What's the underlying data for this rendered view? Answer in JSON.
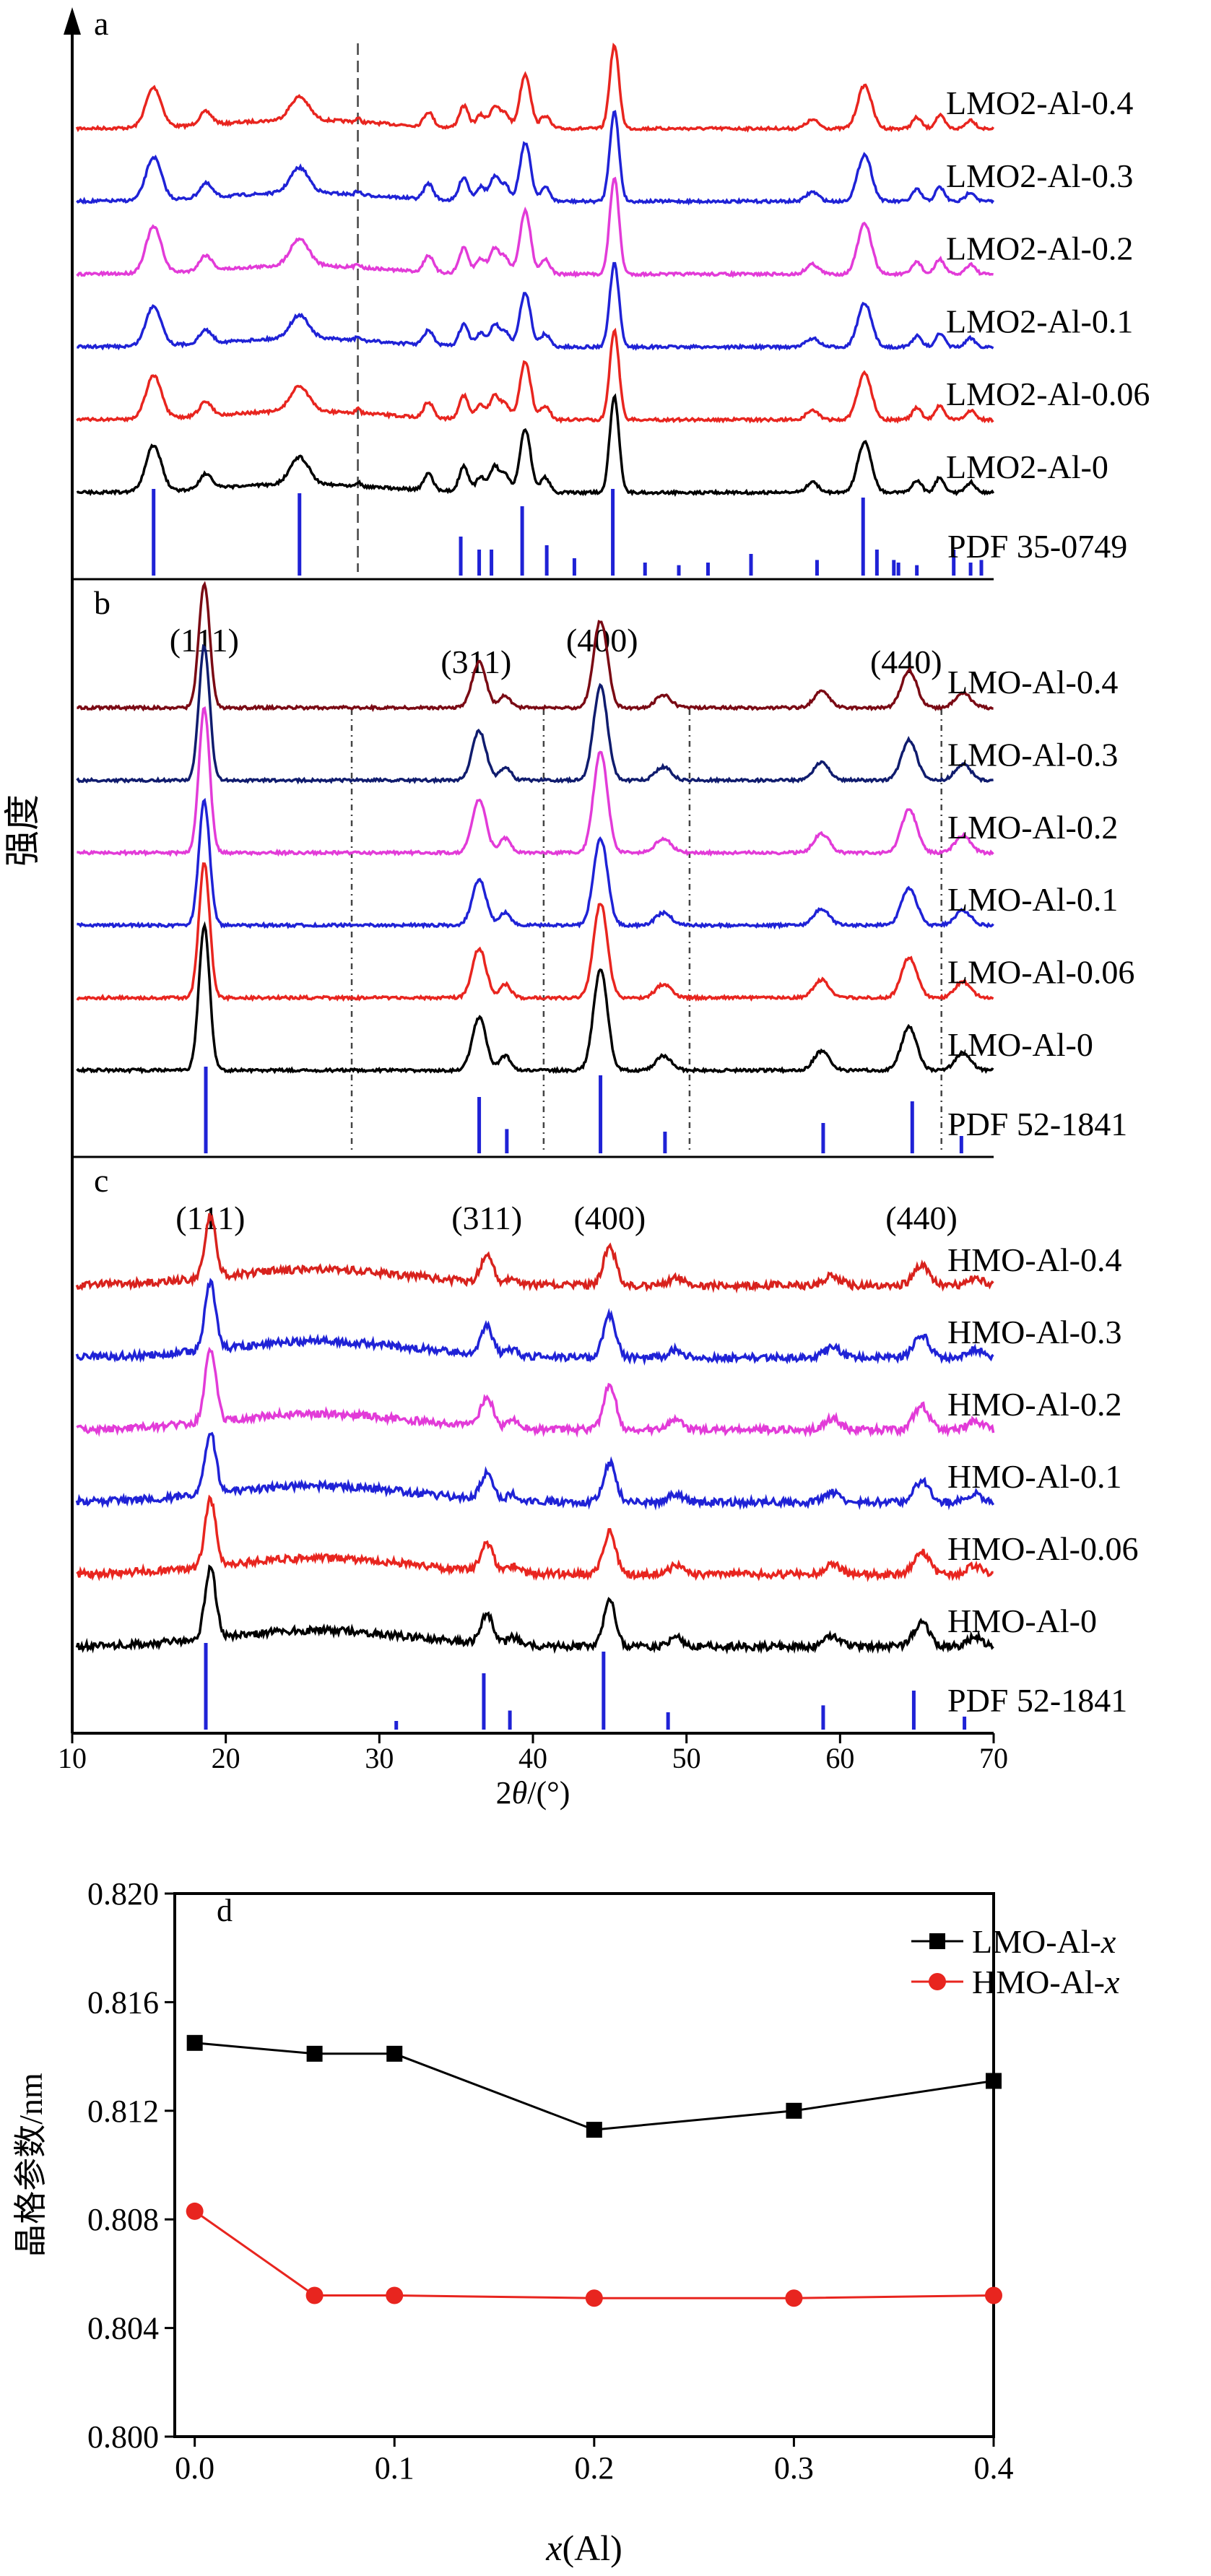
{
  "xrd": {
    "xlabel": "2θ/(°)",
    "ylabel": "强度",
    "xlim": [
      10,
      70
    ],
    "xticks": [
      10,
      20,
      30,
      40,
      50,
      60,
      70
    ],
    "panels": [
      {
        "id": "a",
        "ref_label": "PDF 35-0749",
        "dashed_at": [
          28.6
        ],
        "hkl": [],
        "series": [
          {
            "label": "LMO2-Al-0.4",
            "color": "#e8251f"
          },
          {
            "label": "LMO2-Al-0.3",
            "color": "#1f22d6"
          },
          {
            "label": "LMO2-Al-0.2",
            "color": "#e23bd8"
          },
          {
            "label": "LMO2-Al-0.1",
            "color": "#1f22d6"
          },
          {
            "label": "LMO2-Al-0.06",
            "color": "#e8251f"
          },
          {
            "label": "LMO2-Al-0",
            "color": "#000000"
          }
        ],
        "peaks": [
          [
            15.3,
            0.5,
            0.55
          ],
          [
            18.7,
            0.4,
            0.18
          ],
          [
            24.8,
            0.6,
            0.32
          ],
          [
            28.6,
            0.15,
            0.05
          ],
          [
            33.2,
            0.3,
            0.2
          ],
          [
            35.5,
            0.3,
            0.3
          ],
          [
            36.6,
            0.3,
            0.18
          ],
          [
            37.5,
            0.3,
            0.3
          ],
          [
            38.2,
            0.3,
            0.2
          ],
          [
            39.5,
            0.35,
            0.75
          ],
          [
            40.8,
            0.3,
            0.18
          ],
          [
            45.3,
            0.3,
            1.15
          ],
          [
            58.2,
            0.4,
            0.12
          ],
          [
            61.6,
            0.45,
            0.6
          ],
          [
            65.0,
            0.3,
            0.15
          ],
          [
            66.5,
            0.3,
            0.18
          ],
          [
            68.5,
            0.3,
            0.12
          ]
        ],
        "ref_lines": [
          [
            15.3,
            1.0
          ],
          [
            24.8,
            0.95
          ],
          [
            35.3,
            0.45
          ],
          [
            36.5,
            0.3
          ],
          [
            37.3,
            0.3
          ],
          [
            39.3,
            0.8
          ],
          [
            40.9,
            0.35
          ],
          [
            42.7,
            0.2
          ],
          [
            45.2,
            1.0
          ],
          [
            47.3,
            0.15
          ],
          [
            49.5,
            0.12
          ],
          [
            51.4,
            0.15
          ],
          [
            54.2,
            0.25
          ],
          [
            58.5,
            0.18
          ],
          [
            61.5,
            0.9
          ],
          [
            62.4,
            0.3
          ],
          [
            63.5,
            0.18
          ],
          [
            63.8,
            0.15
          ],
          [
            65.0,
            0.12
          ],
          [
            67.4,
            0.3
          ],
          [
            68.5,
            0.15
          ],
          [
            69.2,
            0.18
          ]
        ]
      },
      {
        "id": "b",
        "ref_label": "PDF 52-1841",
        "dashed_at": [
          28.2,
          40.7,
          50.2,
          66.6
        ],
        "hkl": [
          {
            "label": "(111)",
            "x": 18.6,
            "row": 0
          },
          {
            "label": "(311)",
            "x": 36.3,
            "row": 1
          },
          {
            "label": "(400)",
            "x": 44.5,
            "row": 0
          },
          {
            "label": "(440)",
            "x": 64.3,
            "row": 1
          }
        ],
        "series": [
          {
            "label": "LMO-Al-0.4",
            "color": "#7a0a14"
          },
          {
            "label": "LMO-Al-0.3",
            "color": "#101c6e"
          },
          {
            "label": "LMO-Al-0.2",
            "color": "#e23bd8"
          },
          {
            "label": "LMO-Al-0.1",
            "color": "#1f22d6"
          },
          {
            "label": "LMO-Al-0.06",
            "color": "#e8251f"
          },
          {
            "label": "LMO-Al-0",
            "color": "#000000"
          }
        ],
        "peaks": [
          [
            18.6,
            0.35,
            1.5
          ],
          [
            36.5,
            0.45,
            0.55
          ],
          [
            38.2,
            0.35,
            0.15
          ],
          [
            44.4,
            0.45,
            1.05
          ],
          [
            48.5,
            0.5,
            0.15
          ],
          [
            58.8,
            0.5,
            0.2
          ],
          [
            64.5,
            0.5,
            0.45
          ],
          [
            68.0,
            0.5,
            0.18
          ]
        ],
        "ref_lines": [
          [
            18.7,
            1.0
          ],
          [
            36.5,
            0.65
          ],
          [
            38.3,
            0.28
          ],
          [
            44.4,
            0.9
          ],
          [
            48.6,
            0.25
          ],
          [
            58.9,
            0.35
          ],
          [
            64.7,
            0.6
          ],
          [
            67.9,
            0.2
          ]
        ]
      },
      {
        "id": "c",
        "ref_label": "PDF 52-1841",
        "dashed_at": [],
        "hkl": [
          {
            "label": "(111)",
            "x": 19.0,
            "row": 0
          },
          {
            "label": "(311)",
            "x": 37.0,
            "row": 0
          },
          {
            "label": "(400)",
            "x": 45.0,
            "row": 0
          },
          {
            "label": "(440)",
            "x": 65.3,
            "row": 0
          }
        ],
        "series": [
          {
            "label": "HMO-Al-0.4",
            "color": "#d8221d"
          },
          {
            "label": "HMO-Al-0.3",
            "color": "#1f22d6"
          },
          {
            "label": "HMO-Al-0.2",
            "color": "#e23bd8"
          },
          {
            "label": "HMO-Al-0.1",
            "color": "#1f22d6"
          },
          {
            "label": "HMO-Al-0.06",
            "color": "#e8251f"
          },
          {
            "label": "HMO-Al-0",
            "color": "#000000"
          }
        ],
        "peaks": [
          [
            19.0,
            0.35,
            0.95
          ],
          [
            37.0,
            0.4,
            0.4
          ],
          [
            38.7,
            0.35,
            0.1
          ],
          [
            45.0,
            0.4,
            0.6
          ],
          [
            49.3,
            0.45,
            0.12
          ],
          [
            59.5,
            0.5,
            0.15
          ],
          [
            65.3,
            0.5,
            0.32
          ],
          [
            68.8,
            0.5,
            0.12
          ]
        ],
        "ref_lines": [
          [
            18.7,
            1.0
          ],
          [
            31.1,
            0.1
          ],
          [
            36.8,
            0.65
          ],
          [
            38.5,
            0.22
          ],
          [
            44.6,
            0.9
          ],
          [
            48.8,
            0.2
          ],
          [
            58.9,
            0.28
          ],
          [
            64.8,
            0.45
          ],
          [
            68.1,
            0.15
          ]
        ]
      }
    ]
  },
  "chart_data": {
    "type": "line",
    "panel": "d",
    "xlabel": "x(Al)",
    "ylabel": "晶格参数/nm",
    "xlim": [
      -0.01,
      0.4
    ],
    "ylim": [
      0.8,
      0.82
    ],
    "xticks": [
      "0.0",
      "0.1",
      "0.2",
      "0.3",
      "0.4"
    ],
    "yticks": [
      "0.800",
      "0.804",
      "0.808",
      "0.812",
      "0.816",
      "0.820"
    ],
    "x": [
      0,
      0.06,
      0.1,
      0.2,
      0.3,
      0.4
    ],
    "series": [
      {
        "name": "LMO-Al-",
        "name_italic": "x",
        "color": "#000000",
        "marker": "square",
        "values": [
          0.8145,
          0.8141,
          0.8141,
          0.8113,
          0.812,
          0.8131
        ]
      },
      {
        "name": "HMO-Al-",
        "name_italic": "x",
        "color": "#e8251f",
        "marker": "circle",
        "values": [
          0.8083,
          0.8052,
          0.8052,
          0.8051,
          0.8051,
          0.8052
        ]
      }
    ],
    "legend": "top-right",
    "grid": false
  }
}
